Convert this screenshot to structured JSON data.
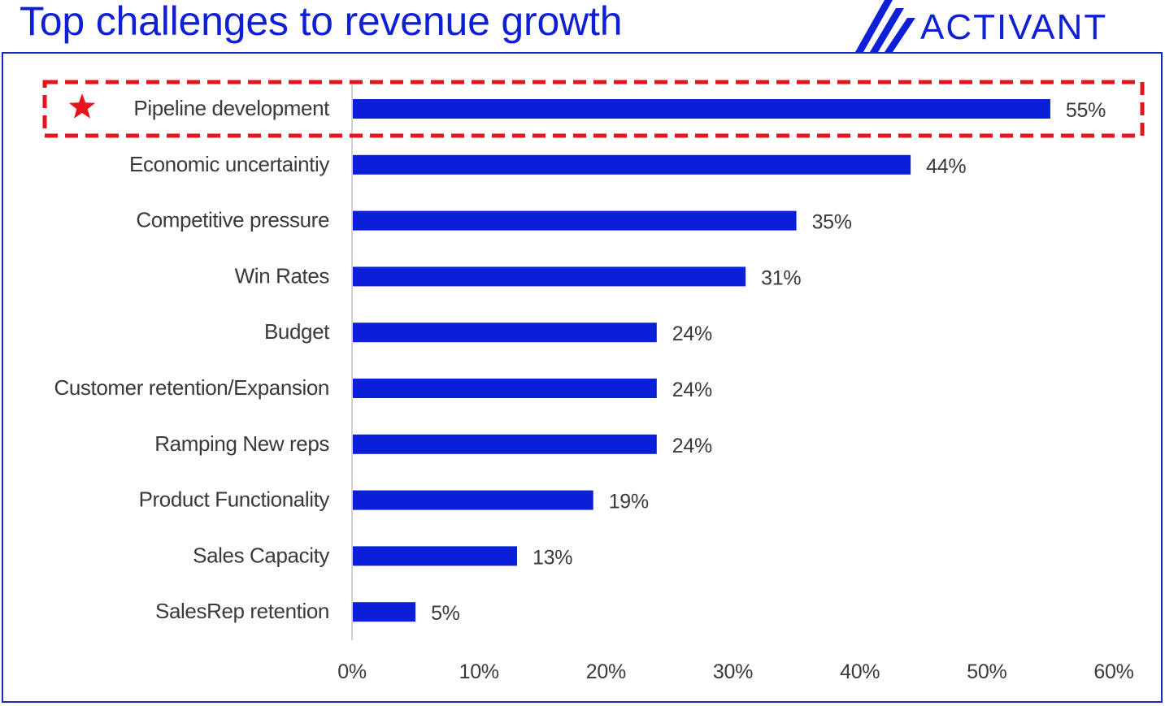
{
  "header": {
    "title": "Top challenges to revenue growth",
    "brand": "ACTIVANT"
  },
  "colors": {
    "bar": "#0b1fd9",
    "title": "#0f1fd6",
    "highlight": "#e8131b",
    "label_text": "#3a3a3a",
    "frame": "#1a2bb8"
  },
  "chart_data": {
    "type": "bar",
    "orientation": "horizontal",
    "title": "Top challenges to revenue growth",
    "categories": [
      "Pipeline development",
      "Economic uncertaintiy",
      "Competitive pressure",
      "Win Rates",
      "Budget",
      "Customer retention/Expansion",
      "Ramping New reps",
      "Product Functionality",
      "Sales Capacity",
      "SalesRep retention"
    ],
    "values": [
      55,
      44,
      35,
      31,
      24,
      24,
      24,
      19,
      13,
      5
    ],
    "data_labels": [
      "55%",
      "44%",
      "35%",
      "31%",
      "24%",
      "24%",
      "24%",
      "19%",
      "13%",
      "5%"
    ],
    "xlim": [
      0,
      60
    ],
    "x_ticks": [
      "0%",
      "10%",
      "20%",
      "30%",
      "40%",
      "50%",
      "60%"
    ],
    "xlabel": "",
    "ylabel": "",
    "grid": false,
    "legend": "none",
    "highlighted_category": "Pipeline development",
    "highlight_marker": "star-icon"
  }
}
